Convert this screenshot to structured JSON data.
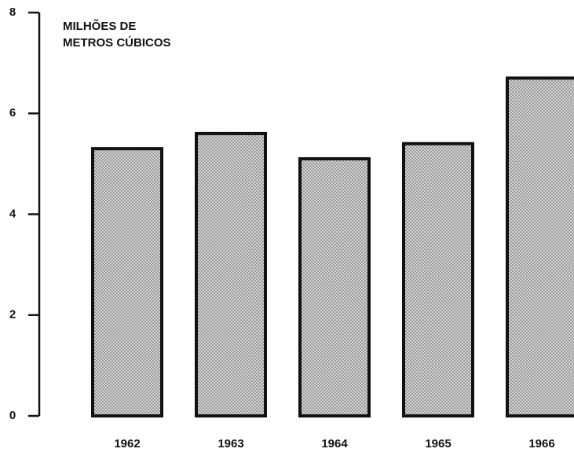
{
  "chart_data": {
    "type": "bar",
    "ylabel": [
      "MILHÕES DE",
      "METROS CÚBICOS"
    ],
    "categories": [
      "1962",
      "1963",
      "1964",
      "1965",
      "1966"
    ],
    "values": [
      5.3,
      5.6,
      5.1,
      5.4,
      6.7
    ],
    "color": "#d4d4d4",
    "ylim": [
      0,
      8
    ],
    "yticks": [
      0,
      2,
      4,
      6,
      8
    ],
    "grid": false
  }
}
